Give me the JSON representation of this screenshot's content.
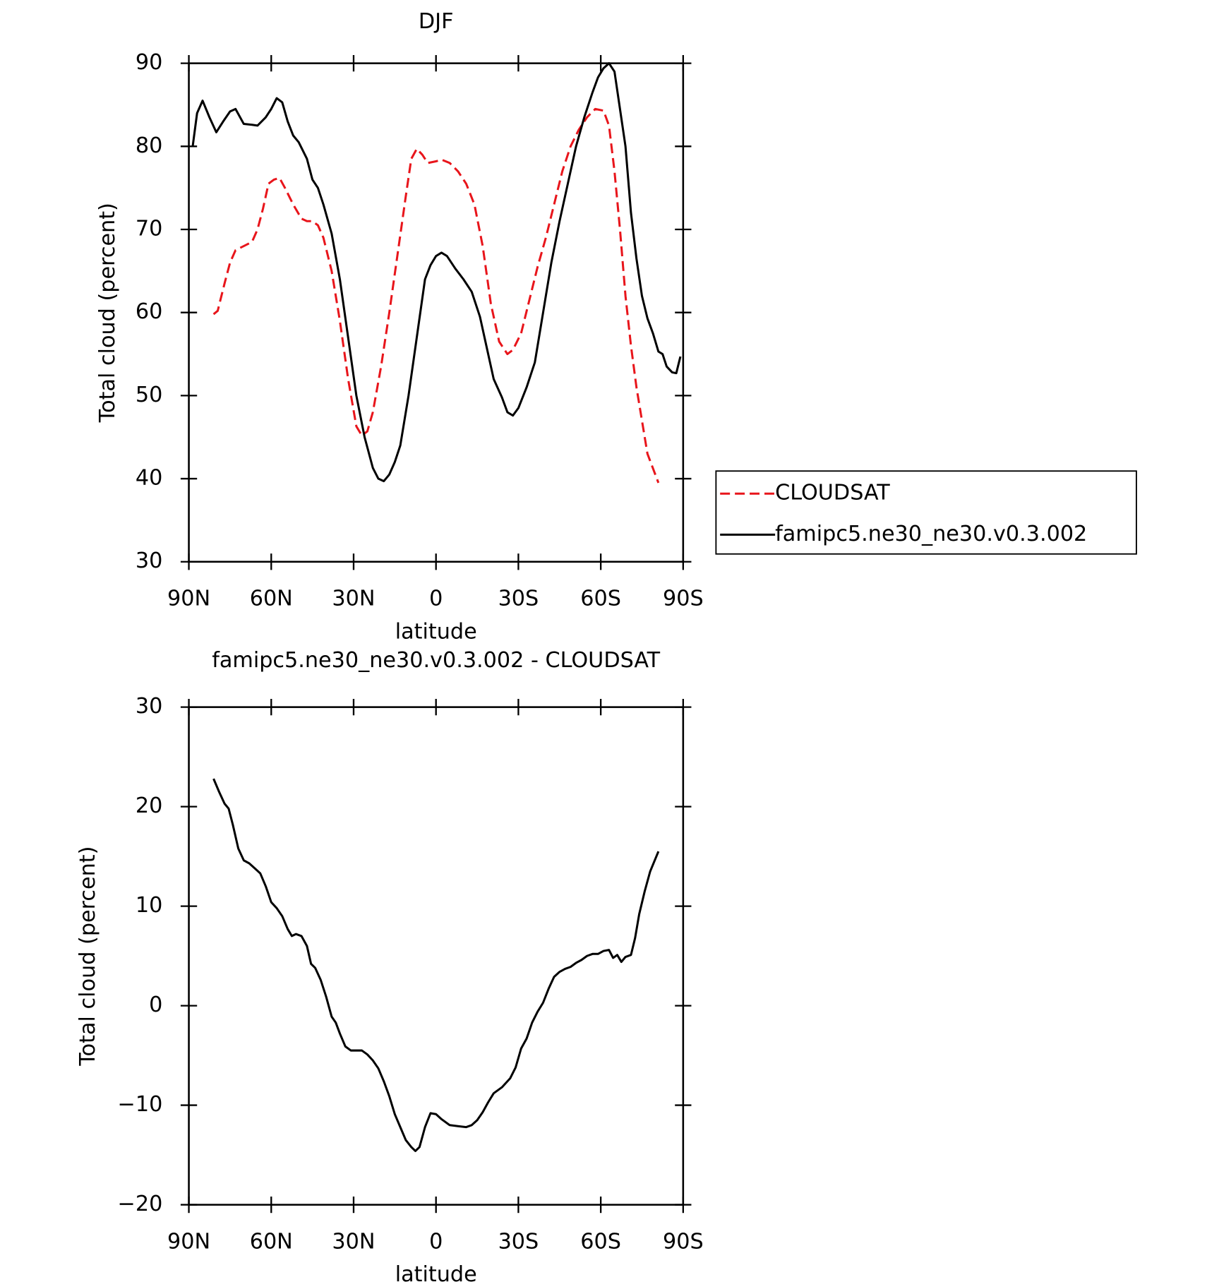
{
  "chart_data": [
    {
      "type": "line",
      "title": "DJF",
      "xlabel": "latitude",
      "ylabel": "Total cloud (percent)",
      "xlim": [
        90,
        -90
      ],
      "ylim": [
        30,
        90
      ],
      "xticks": [
        {
          "value": 90,
          "label": "90N"
        },
        {
          "value": 60,
          "label": "60N"
        },
        {
          "value": 30,
          "label": "30N"
        },
        0,
        {
          "value": -30,
          "label": "30S"
        },
        {
          "value": -60,
          "label": "60S"
        },
        {
          "value": -90,
          "label": "90S"
        }
      ],
      "yticks": [
        30,
        40,
        50,
        60,
        70,
        80,
        90
      ],
      "legend_position": "right",
      "series": [
        {
          "name": "CLOUDSAT",
          "color": "#e8151b",
          "dashed": true,
          "x": [
            81,
            79.5,
            77,
            75,
            73,
            70,
            67,
            65,
            63,
            61,
            59,
            57,
            55,
            52,
            49,
            47,
            45,
            43,
            41,
            38,
            35,
            32,
            29,
            27,
            25,
            23,
            20,
            17,
            14,
            11,
            9,
            7,
            5,
            3,
            0,
            -2,
            -5,
            -8,
            -11,
            -14,
            -17,
            -20,
            -23,
            -26,
            -28,
            -31,
            -34,
            -37,
            -40,
            -43,
            -46,
            -49,
            -52,
            -55,
            -58,
            -61,
            -63,
            -65,
            -67,
            -69,
            -71,
            -73,
            -75,
            -77,
            -81
          ],
          "values": [
            59.8,
            60.2,
            63.5,
            66,
            67.5,
            68,
            68.5,
            70,
            72.5,
            75.5,
            76,
            76.2,
            75,
            73,
            71.3,
            71,
            71,
            70.5,
            69,
            65,
            59,
            52,
            46.3,
            45.2,
            45.7,
            48,
            53.5,
            60,
            67,
            74,
            78.5,
            79.7,
            79,
            78,
            78.2,
            78.4,
            78,
            77,
            75.5,
            73,
            68,
            61,
            56.5,
            55,
            55.5,
            57.5,
            61.5,
            65.5,
            69,
            73,
            77,
            80,
            82,
            83.5,
            84.5,
            84.3,
            82.5,
            77,
            70,
            62,
            56,
            51,
            47,
            43,
            39.5
          ]
        },
        {
          "name": "famipc5.ne30_ne30.v0.3.002",
          "color": "#000000",
          "dashed": false,
          "x": [
            88.6,
            87,
            85,
            82.5,
            80,
            77.5,
            75,
            73,
            70,
            67,
            65,
            62,
            60,
            58,
            56,
            54,
            52,
            50,
            47,
            45,
            43,
            41,
            38,
            35,
            32,
            29,
            26,
            23,
            21,
            19,
            17,
            15,
            13,
            10,
            7,
            4,
            2,
            0,
            -2,
            -4,
            -7,
            -10,
            -13,
            -16,
            -18,
            -21,
            -24,
            -26,
            -28,
            -30,
            -33,
            -36,
            -39,
            -42,
            -45,
            -48,
            -51,
            -54,
            -57,
            -59,
            -61,
            -63,
            -65,
            -67,
            -69,
            -71,
            -73,
            -75,
            -77,
            -79,
            -81,
            -82.5,
            -84,
            -86,
            -87.5,
            -89
          ],
          "values": [
            80,
            84,
            85.5,
            83.5,
            81.7,
            83,
            84.2,
            84.5,
            82.7,
            82.6,
            82.5,
            83.5,
            84.5,
            85.8,
            85.3,
            83,
            81.3,
            80.5,
            78.5,
            76,
            75,
            73,
            69.5,
            64,
            57,
            50,
            45,
            41.3,
            40,
            39.7,
            40.5,
            42,
            44,
            50,
            57,
            64,
            65.7,
            66.8,
            67.2,
            66.8,
            65.3,
            64,
            62.5,
            59.5,
            56.5,
            52,
            49.8,
            48,
            47.6,
            48.5,
            51,
            54,
            60,
            66,
            71,
            75.5,
            80,
            83.5,
            86.5,
            88.3,
            89.4,
            90,
            89,
            84.5,
            80,
            72,
            66.5,
            62,
            59.3,
            57.5,
            55.3,
            55,
            53.5,
            52.8,
            52.7,
            54.7
          ]
        }
      ]
    },
    {
      "type": "line",
      "title": "famipc5.ne30_ne30.v0.3.002 - CLOUDSAT",
      "xlabel": "latitude",
      "ylabel": "Total cloud (percent)",
      "xlim": [
        90,
        -90
      ],
      "ylim": [
        -20,
        30
      ],
      "xticks": [
        {
          "value": 90,
          "label": "90N"
        },
        {
          "value": 60,
          "label": "60N"
        },
        {
          "value": 30,
          "label": "30N"
        },
        0,
        {
          "value": -30,
          "label": "30S"
        },
        {
          "value": -60,
          "label": "60S"
        },
        {
          "value": -90,
          "label": "90S"
        }
      ],
      "yticks": [
        {
          "value": -20,
          "label": "−20"
        },
        {
          "value": -10,
          "label": "−10"
        },
        0,
        10,
        20,
        30
      ],
      "series": [
        {
          "color": "#000000",
          "dashed": false,
          "x": [
            81,
            79,
            77,
            75.5,
            74,
            72,
            70,
            68,
            66,
            64,
            62,
            60,
            58,
            56,
            54,
            52.5,
            51,
            49,
            47,
            45.5,
            44,
            42,
            40,
            38,
            36.5,
            35,
            33,
            31,
            29,
            27,
            25,
            23,
            21,
            19,
            17,
            15,
            13,
            11,
            9,
            7.5,
            6,
            4,
            2,
            0,
            -2,
            -5,
            -8,
            -11,
            -13,
            -15,
            -17,
            -19,
            -21,
            -24,
            -27,
            -29,
            -31,
            -33,
            -35,
            -37,
            -39,
            -41,
            -43,
            -45,
            -47,
            -49,
            -51,
            -53,
            -55,
            -57,
            -59,
            -61,
            -63,
            -64.5,
            -66,
            -67.5,
            -69,
            -71,
            -72.5,
            -74,
            -76,
            -78,
            -81
          ],
          "values": [
            22.8,
            21.5,
            20.3,
            19.8,
            18.2,
            15.8,
            14.6,
            14.3,
            13.8,
            13.3,
            12,
            10.4,
            9.8,
            9,
            7.7,
            7,
            7.2,
            7,
            6,
            4.2,
            3.8,
            2.6,
            0.9,
            -1.1,
            -1.7,
            -2.8,
            -4.1,
            -4.5,
            -4.5,
            -4.5,
            -4.9,
            -5.5,
            -6.3,
            -7.6,
            -9.1,
            -10.9,
            -12.2,
            -13.5,
            -14.2,
            -14.6,
            -14.2,
            -12.2,
            -10.8,
            -10.9,
            -11.4,
            -12,
            -12.1,
            -12.2,
            -12,
            -11.5,
            -10.7,
            -9.7,
            -8.8,
            -8.2,
            -7.3,
            -6.2,
            -4.3,
            -3.3,
            -1.7,
            -0.6,
            0.3,
            1.7,
            2.9,
            3.4,
            3.7,
            3.9,
            4.3,
            4.6,
            5,
            5.2,
            5.2,
            5.5,
            5.6,
            4.8,
            5.1,
            4.4,
            4.9,
            5.1,
            6.8,
            9.2,
            11.5,
            13.5,
            15.5
          ]
        }
      ]
    }
  ]
}
